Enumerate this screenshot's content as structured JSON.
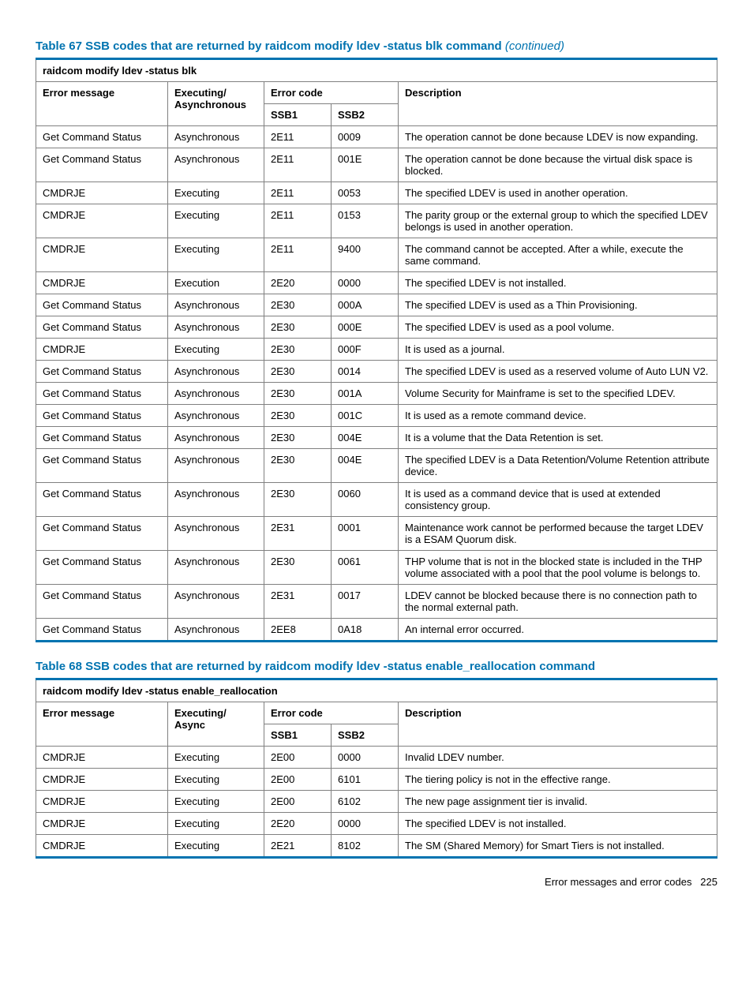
{
  "colors": {
    "accent": "#0073b0",
    "border": "#808080",
    "text": "#000000",
    "background": "#ffffff"
  },
  "typography": {
    "body_fontsize": 13,
    "title_fontsize": 15,
    "title_weight": "bold",
    "font_family": "Arial, Helvetica, sans-serif"
  },
  "table67": {
    "title_prefix": "Table 67 SSB codes that are returned by raidcom modify ldev -status blk command",
    "continued_label": "(continued)",
    "caption": "raidcom modify ldev -status blk",
    "headers": {
      "error_message": "Error message",
      "executing": "Executing/ Asynchronous",
      "error_code": "Error code",
      "ssb1": "SSB1",
      "ssb2": "SSB2",
      "description": "Description"
    },
    "rows": [
      {
        "msg": "Get Command Status",
        "exec": "Asynchronous",
        "ssb1": "2E11",
        "ssb2": "0009",
        "desc": "The operation cannot be done because LDEV is now expanding."
      },
      {
        "msg": "Get Command Status",
        "exec": "Asynchronous",
        "ssb1": "2E11",
        "ssb2": "001E",
        "desc": "The operation cannot be done because the virtual disk space is blocked."
      },
      {
        "msg": "CMDRJE",
        "exec": "Executing",
        "ssb1": "2E11",
        "ssb2": "0053",
        "desc": "The specified LDEV is used in another operation."
      },
      {
        "msg": "CMDRJE",
        "exec": "Executing",
        "ssb1": "2E11",
        "ssb2": "0153",
        "desc": "The parity group or the external group to which the specified LDEV belongs is used in another operation."
      },
      {
        "msg": "CMDRJE",
        "exec": "Executing",
        "ssb1": "2E11",
        "ssb2": "9400",
        "desc": "The command cannot be accepted. After a while, execute the same command."
      },
      {
        "msg": "CMDRJE",
        "exec": "Execution",
        "ssb1": "2E20",
        "ssb2": "0000",
        "desc": "The specified LDEV is not installed."
      },
      {
        "msg": "Get Command Status",
        "exec": "Asynchronous",
        "ssb1": "2E30",
        "ssb2": "000A",
        "desc": "The specified LDEV is used as a Thin Provisioning."
      },
      {
        "msg": "Get Command Status",
        "exec": "Asynchronous",
        "ssb1": "2E30",
        "ssb2": "000E",
        "desc": "The specified LDEV is used as a pool volume."
      },
      {
        "msg": "CMDRJE",
        "exec": "Executing",
        "ssb1": "2E30",
        "ssb2": "000F",
        "desc": "It is used as a journal."
      },
      {
        "msg": "Get Command Status",
        "exec": "Asynchronous",
        "ssb1": "2E30",
        "ssb2": "0014",
        "desc": "The specified LDEV is used as a reserved volume of Auto LUN V2."
      },
      {
        "msg": "Get Command Status",
        "exec": "Asynchronous",
        "ssb1": "2E30",
        "ssb2": "001A",
        "desc": "Volume Security for Mainframe is set to the specified LDEV."
      },
      {
        "msg": "Get Command Status",
        "exec": "Asynchronous",
        "ssb1": "2E30",
        "ssb2": "001C",
        "desc": "It is used as a remote command device."
      },
      {
        "msg": "Get Command Status",
        "exec": "Asynchronous",
        "ssb1": "2E30",
        "ssb2": "004E",
        "desc": "It is a volume that the Data Retention is set."
      },
      {
        "msg": "Get Command Status",
        "exec": "Asynchronous",
        "ssb1": "2E30",
        "ssb2": "004E",
        "desc": "The specified LDEV is a Data Retention/Volume Retention attribute device."
      },
      {
        "msg": "Get Command Status",
        "exec": "Asynchronous",
        "ssb1": "2E30",
        "ssb2": "0060",
        "desc": "It is used as a command device that is used at extended consistency group."
      },
      {
        "msg": "Get Command Status",
        "exec": "Asynchronous",
        "ssb1": "2E31",
        "ssb2": "0001",
        "desc": "Maintenance work cannot be performed because the target LDEV is a ESAM Quorum disk."
      },
      {
        "msg": "Get Command Status",
        "exec": "Asynchronous",
        "ssb1": "2E30",
        "ssb2": "0061",
        "desc": "THP volume that is not in the blocked state is included in the THP volume associated with a pool that the pool volume is belongs to."
      },
      {
        "msg": "Get Command Status",
        "exec": "Asynchronous",
        "ssb1": "2E31",
        "ssb2": "0017",
        "desc": "LDEV cannot be blocked because there is no connection path to the normal external path."
      },
      {
        "msg": "Get Command Status",
        "exec": "Asynchronous",
        "ssb1": "2EE8",
        "ssb2": "0A18",
        "desc": "An internal error occurred."
      }
    ]
  },
  "table68": {
    "title": "Table 68 SSB codes that are returned by raidcom modify ldev -status enable_reallocation command",
    "caption": "raidcom modify ldev -status enable_reallocation",
    "headers": {
      "error_message": "Error message",
      "executing": "Executing/ Async",
      "error_code": "Error code",
      "ssb1": "SSB1",
      "ssb2": "SSB2",
      "description": "Description"
    },
    "rows": [
      {
        "msg": "CMDRJE",
        "exec": "Executing",
        "ssb1": "2E00",
        "ssb2": "0000",
        "desc": "Invalid LDEV number."
      },
      {
        "msg": "CMDRJE",
        "exec": "Executing",
        "ssb1": "2E00",
        "ssb2": "6101",
        "desc": "The tiering policy is not in the effective range."
      },
      {
        "msg": "CMDRJE",
        "exec": "Executing",
        "ssb1": "2E00",
        "ssb2": "6102",
        "desc": "The new page assignment tier is invalid."
      },
      {
        "msg": "CMDRJE",
        "exec": "Executing",
        "ssb1": "2E20",
        "ssb2": "0000",
        "desc": "The specified LDEV is not installed."
      },
      {
        "msg": "CMDRJE",
        "exec": "Executing",
        "ssb1": "2E21",
        "ssb2": "8102",
        "desc": "The SM (Shared Memory) for Smart Tiers is not installed."
      }
    ]
  },
  "footer": {
    "text": "Error messages and error codes",
    "page": "225"
  }
}
